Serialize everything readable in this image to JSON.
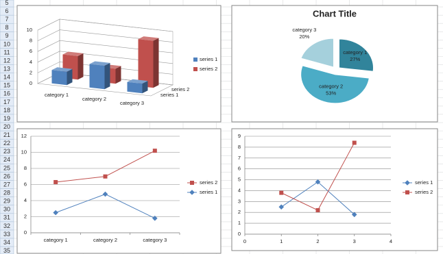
{
  "row_headers": [
    5,
    6,
    7,
    8,
    9,
    10,
    11,
    12,
    13,
    14,
    15,
    16,
    17,
    18,
    19,
    20,
    21,
    22,
    23,
    24,
    25,
    26,
    27,
    28,
    29,
    30,
    31,
    32,
    33,
    34,
    35
  ],
  "chart_data": [
    {
      "type": "bar3d",
      "categories": [
        "category 1",
        "category 2",
        "category 3"
      ],
      "series": [
        {
          "name": "series 1",
          "color": "#4F81BD",
          "values": [
            2.5,
            4.4,
            1.8
          ]
        },
        {
          "name": "series 2",
          "color": "#C0504D",
          "values": [
            4.4,
            2.8,
            8.8
          ]
        }
      ],
      "ylim": [
        0,
        10
      ],
      "yticks": [
        0,
        2,
        4,
        6,
        8,
        10
      ],
      "grid": true,
      "legend": "right"
    },
    {
      "type": "pie",
      "title": "Chart Title",
      "categories": [
        "category 1",
        "category 2",
        "category 3"
      ],
      "values": [
        27,
        53,
        20
      ],
      "value_labels": [
        "27%",
        "53%",
        "20%"
      ],
      "colors": [
        "#31849B",
        "#4BACC6",
        "#A5D0DC"
      ]
    },
    {
      "type": "line",
      "categories": [
        "category 1",
        "category 2",
        "category 3"
      ],
      "series": [
        {
          "name": "series 2",
          "color": "#C0504D",
          "marker": "square",
          "values": [
            6.3,
            7.0,
            10.2
          ]
        },
        {
          "name": "series 1",
          "color": "#4F81BD",
          "marker": "diamond",
          "values": [
            2.5,
            4.8,
            1.8
          ]
        }
      ],
      "ylim": [
        0,
        12
      ],
      "yticks": [
        0,
        2,
        4,
        6,
        8,
        10,
        12
      ],
      "grid": true,
      "legend": "right"
    },
    {
      "type": "scatter",
      "x": [
        1,
        2,
        3
      ],
      "series": [
        {
          "name": "series 1",
          "color": "#4F81BD",
          "marker": "diamond",
          "values": [
            2.5,
            4.8,
            1.8
          ]
        },
        {
          "name": "series 2",
          "color": "#C0504D",
          "marker": "square",
          "values": [
            3.8,
            2.2,
            8.4
          ]
        }
      ],
      "xlim": [
        0,
        4
      ],
      "xticks": [
        0,
        1,
        2,
        3,
        4
      ],
      "ylim": [
        0,
        9
      ],
      "yticks": [
        0,
        1,
        2,
        3,
        4,
        5,
        6,
        7,
        8,
        9
      ],
      "grid": true,
      "legend": "right"
    }
  ]
}
